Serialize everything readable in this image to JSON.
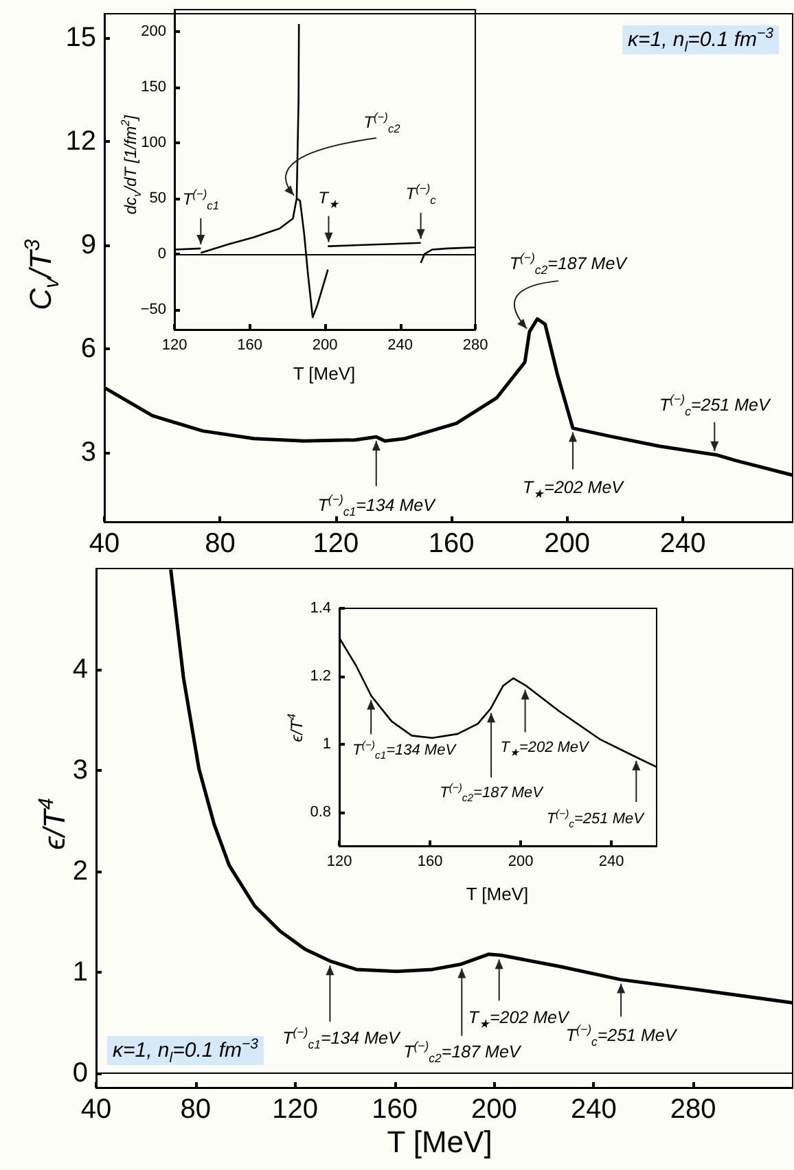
{
  "chart_data": [
    {
      "type": "line",
      "ylabel": "C$_{v}$/T$^{3}$",
      "xlim": [
        40,
        278
      ],
      "ylim": [
        1,
        15.7
      ],
      "xticks": [
        40,
        80,
        120,
        160,
        200,
        240
      ],
      "yticks": [
        3,
        6,
        9,
        12,
        15
      ],
      "series": [
        {
          "color": "#000000",
          "x": [
            40,
            56.6,
            74,
            91.7,
            109,
            126.7,
            134,
            137,
            144,
            161.7,
            175.7,
            185.4,
            187,
            189.7,
            192.4,
            196.7,
            202,
            214,
            231.8,
            252,
            258,
            278
          ],
          "values": [
            4.88,
            4.07,
            3.63,
            3.41,
            3.34,
            3.37,
            3.46,
            3.34,
            3.41,
            3.85,
            4.59,
            5.62,
            6.5,
            6.87,
            6.72,
            5.25,
            3.71,
            3.49,
            3.19,
            2.93,
            2.78,
            2.35
          ]
        }
      ],
      "annotations": [
        "κ=1, n$_{l}$=0.1 fm$^{−3}$",
        {
          "text": "T$^{(−)}$$_{c1}$=134 MeV",
          "x": 134,
          "y": 3.46
        },
        {
          "text": "T$^{(−)}$$_{c2}$=187 MeV",
          "x": 187,
          "y": 6.5
        },
        {
          "text": "T$_{★}$=202 MeV",
          "x": 202,
          "y": 3.71
        },
        {
          "text": "T$^{(−)}$$_{c}$=251 MeV",
          "x": 251,
          "y": 2.93
        }
      ]
    },
    {
      "type": "line",
      "xlabel": "T  [MeV]",
      "ylabel": "dc$_{v}$/dT  [1/fm$^{2}$]",
      "xlim": [
        120,
        280
      ],
      "ylim": [
        -68,
        220
      ],
      "xticks": [
        120,
        160,
        200,
        240,
        280
      ],
      "yticks": [
        -50,
        0,
        50,
        100,
        150,
        200
      ],
      "series": [
        {
          "color": "#000000",
          "x": [
            120,
            134
          ],
          "values": [
            4,
            5
          ]
        },
        {
          "color": "#000000",
          "x": [
            134,
            149,
            162,
            176,
            183,
            185,
            186,
            186.2
          ],
          "values": [
            1,
            9,
            15,
            23,
            32,
            50,
            138,
            207
          ]
        },
        {
          "color": "#000000",
          "x": [
            185,
            186.8,
            189,
            191,
            193.5,
            196,
            201.6
          ],
          "values": [
            50,
            48,
            18,
            -18,
            -57,
            -46,
            -14
          ]
        },
        {
          "color": "#000000",
          "x": [
            201.6,
            251
          ],
          "values": [
            7,
            10
          ]
        },
        {
          "color": "#000000",
          "x": [
            251,
            253,
            257,
            265,
            280
          ],
          "values": [
            -8,
            0,
            4,
            5,
            6
          ]
        }
      ],
      "ref_lines": [
        {
          "axis": "y",
          "value": 0
        }
      ],
      "annotations": [
        {
          "text": "T$^{(−)}$$_{c1}$",
          "x": 134,
          "y": 5
        },
        {
          "text": "T$^{(−)}$$_{c2}$",
          "x": 185,
          "y": 50
        },
        {
          "text": "T$_{★}$",
          "x": 202,
          "y": 7
        },
        {
          "text": "T$^{(−)}$$_{c}$",
          "x": 251,
          "y": 10
        }
      ]
    },
    {
      "type": "line",
      "xlabel": "T  [MeV]",
      "ylabel": "ϵ/T$^{4}$",
      "xlim": [
        40,
        320
      ],
      "ylim": [
        -0.14,
        5
      ],
      "xticks": [
        40,
        80,
        120,
        160,
        200,
        240,
        280
      ],
      "yticks": [
        0,
        1,
        2,
        3,
        4
      ],
      "series": [
        {
          "color": "#000000",
          "x": [
            70,
            75.1,
            81.3,
            87.4,
            93.5,
            103.7,
            113.9,
            124,
            134.4,
            144.6,
            160.9,
            175.2,
            186.4,
            197.7,
            202.8,
            226.3,
            250.8,
            287.5,
            320
          ],
          "values": [
            4.99,
            3.92,
            3.02,
            2.47,
            2.06,
            1.66,
            1.41,
            1.23,
            1.11,
            1.03,
            1.01,
            1.03,
            1.08,
            1.18,
            1.17,
            1.06,
            0.93,
            0.81,
            0.7
          ]
        }
      ],
      "ref_lines": [
        {
          "axis": "y",
          "value": 0
        }
      ],
      "annotations": [
        "κ=1, n$_{l}$=0.1 fm$^{−3}$",
        {
          "text": "T$^{(−)}$$_{c1}$=134 MeV",
          "x": 134,
          "y": 1.11
        },
        {
          "text": "T$^{(−)}$$_{c2}$=187 MeV",
          "x": 187,
          "y": 1.08
        },
        {
          "text": "T$_{★}$=202 MeV",
          "x": 202,
          "y": 1.17
        },
        {
          "text": "T$^{(−)}$$_{c}$=251 MeV",
          "x": 251,
          "y": 0.93
        }
      ]
    },
    {
      "type": "line",
      "xlabel": "T  [MeV]",
      "ylabel": "ϵ/T$^{4}$",
      "xlim": [
        120,
        260
      ],
      "ylim": [
        0.7,
        1.4
      ],
      "xticks": [
        120,
        160,
        200,
        240
      ],
      "yticks": [
        0.8,
        1,
        1.2,
        1.4
      ],
      "series": [
        {
          "color": "#000000",
          "x": [
            120,
            127.4,
            134.1,
            143.1,
            152,
            161,
            172.2,
            181.1,
            186.7,
            192.3,
            196.8,
            202.4,
            217,
            234.8,
            250.5,
            259.9
          ],
          "values": [
            1.313,
            1.231,
            1.142,
            1.067,
            1.025,
            1.018,
            1.03,
            1.06,
            1.104,
            1.172,
            1.194,
            1.172,
            1.097,
            1.015,
            0.963,
            0.933
          ]
        }
      ],
      "annotations": [
        {
          "text": "T$^{(−)}$$_{c1}$=134 MeV",
          "x": 134,
          "y": 1.142
        },
        {
          "text": "T$^{(−)}$$_{c2}$=187 MeV",
          "x": 187,
          "y": 1.104
        },
        {
          "text": "T$_{★}$=202 MeV",
          "x": 202,
          "y": 1.172
        },
        {
          "text": "T$^{(−)}$$_{c}$=251 MeV",
          "x": 251,
          "y": 0.963
        }
      ]
    }
  ]
}
